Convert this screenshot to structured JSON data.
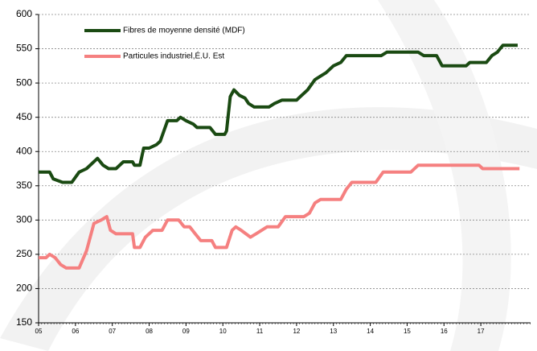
{
  "chart_data": {
    "type": "line",
    "xlim": [
      2005,
      2018.35
    ],
    "ylim": [
      150,
      600
    ],
    "yticks": [
      150,
      200,
      250,
      300,
      350,
      400,
      450,
      500,
      550,
      600
    ],
    "xticks": [
      {
        "value": 2005,
        "label": "05"
      },
      {
        "value": 2006,
        "label": "06"
      },
      {
        "value": 2007,
        "label": "07"
      },
      {
        "value": 2008,
        "label": "08"
      },
      {
        "value": 2009,
        "label": "09"
      },
      {
        "value": 2010,
        "label": "10"
      },
      {
        "value": 2011,
        "label": "11"
      },
      {
        "value": 2012,
        "label": "12"
      },
      {
        "value": 2013,
        "label": "13"
      },
      {
        "value": 2014,
        "label": "14"
      },
      {
        "value": 2015,
        "label": "15"
      },
      {
        "value": 2016,
        "label": "16"
      },
      {
        "value": 2017,
        "label": "17"
      }
    ],
    "grid": true,
    "series": [
      {
        "name": "Fibres de moyenne densité (MDF)",
        "color": "#1a4a12",
        "x": [
          2005.0,
          2005.3,
          2005.4,
          2005.65,
          2005.9,
          2006.1,
          2006.3,
          2006.6,
          2006.75,
          2006.9,
          2007.1,
          2007.3,
          2007.55,
          2007.6,
          2007.75,
          2007.85,
          2008.0,
          2008.2,
          2008.3,
          2008.5,
          2008.75,
          2008.85,
          2009.0,
          2009.2,
          2009.3,
          2009.65,
          2009.8,
          2010.05,
          2010.1,
          2010.2,
          2010.3,
          2010.45,
          2010.6,
          2010.7,
          2010.85,
          2011.25,
          2011.4,
          2011.6,
          2012.0,
          2012.1,
          2012.3,
          2012.5,
          2012.65,
          2012.8,
          2013.0,
          2013.2,
          2013.35,
          2014.3,
          2014.45,
          2015.3,
          2015.45,
          2015.8,
          2015.95,
          2016.6,
          2016.7,
          2017.15,
          2017.3,
          2017.45,
          2017.6,
          2018.0
        ],
        "values": [
          370,
          370,
          360,
          355,
          355,
          370,
          375,
          390,
          380,
          375,
          375,
          385,
          385,
          380,
          380,
          405,
          405,
          410,
          415,
          445,
          445,
          450,
          445,
          440,
          435,
          435,
          425,
          425,
          430,
          480,
          490,
          482,
          478,
          470,
          465,
          465,
          470,
          475,
          475,
          480,
          490,
          505,
          510,
          515,
          525,
          530,
          540,
          540,
          545,
          545,
          540,
          540,
          525,
          525,
          530,
          530,
          540,
          545,
          555,
          555
        ]
      },
      {
        "name": "Particules industriel,É.U. Est",
        "color": "#f58080",
        "x": [
          2005.0,
          2005.2,
          2005.3,
          2005.45,
          2005.6,
          2005.75,
          2006.1,
          2006.3,
          2006.5,
          2006.7,
          2006.85,
          2006.95,
          2007.1,
          2007.55,
          2007.6,
          2007.75,
          2007.9,
          2008.1,
          2008.35,
          2008.5,
          2008.8,
          2008.95,
          2009.1,
          2009.25,
          2009.4,
          2009.7,
          2009.8,
          2010.1,
          2010.25,
          2010.35,
          2010.5,
          2010.75,
          2010.9,
          2011.2,
          2011.5,
          2011.7,
          2012.2,
          2012.35,
          2012.5,
          2012.65,
          2012.9,
          2013.2,
          2013.35,
          2013.5,
          2014.15,
          2014.35,
          2015.1,
          2015.3,
          2016.95,
          2017.05,
          2018.05
        ],
        "values": [
          245,
          245,
          250,
          245,
          235,
          230,
          230,
          255,
          295,
          300,
          305,
          285,
          280,
          280,
          260,
          260,
          275,
          285,
          285,
          300,
          300,
          290,
          290,
          280,
          270,
          270,
          260,
          260,
          285,
          290,
          285,
          275,
          280,
          290,
          290,
          305,
          305,
          310,
          325,
          330,
          330,
          330,
          345,
          355,
          355,
          370,
          370,
          380,
          380,
          375,
          375
        ]
      }
    ]
  }
}
